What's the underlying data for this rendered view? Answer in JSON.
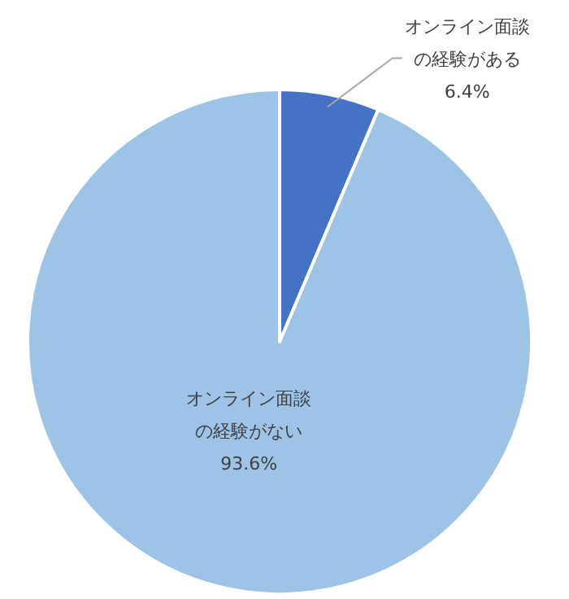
{
  "chart_data": {
    "type": "pie",
    "categories": [
      "オンライン面談の経験がある",
      "オンライン面談の経験がない"
    ],
    "values": [
      6.4,
      93.6
    ],
    "colors": [
      "#4472c4",
      "#9dc3e6"
    ],
    "value_labels": [
      "6.4%",
      "93.6%"
    ]
  }
}
